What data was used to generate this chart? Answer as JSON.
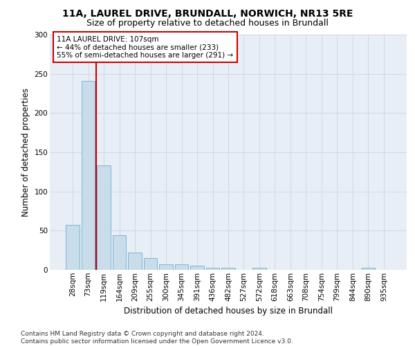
{
  "title_line1": "11A, LAUREL DRIVE, BRUNDALL, NORWICH, NR13 5RE",
  "title_line2": "Size of property relative to detached houses in Brundall",
  "xlabel": "Distribution of detached houses by size in Brundall",
  "ylabel": "Number of detached properties",
  "categories": [
    "28sqm",
    "73sqm",
    "119sqm",
    "164sqm",
    "209sqm",
    "255sqm",
    "300sqm",
    "345sqm",
    "391sqm",
    "436sqm",
    "482sqm",
    "527sqm",
    "572sqm",
    "618sqm",
    "663sqm",
    "708sqm",
    "754sqm",
    "799sqm",
    "844sqm",
    "890sqm",
    "935sqm"
  ],
  "values": [
    57,
    241,
    133,
    44,
    22,
    15,
    7,
    7,
    5,
    3,
    3,
    0,
    3,
    0,
    0,
    0,
    0,
    0,
    0,
    3,
    0
  ],
  "bar_color": "#c9dcea",
  "bar_edge_color": "#6aafd4",
  "highlight_line_color": "#cc0000",
  "annotation_box_color": "#ffffff",
  "annotation_box_edge_color": "#cc0000",
  "annotation_box_text": "11A LAUREL DRIVE: 107sqm\n← 44% of detached houses are smaller (233)\n55% of semi-detached houses are larger (291) →",
  "ylim": [
    0,
    300
  ],
  "yticks": [
    0,
    50,
    100,
    150,
    200,
    250,
    300
  ],
  "grid_color": "#d0d8e8",
  "background_color": "#e8eef5",
  "footnote": "Contains HM Land Registry data © Crown copyright and database right 2024.\nContains public sector information licensed under the Open Government Licence v3.0.",
  "title_fontsize": 10,
  "subtitle_fontsize": 9,
  "axis_label_fontsize": 8.5,
  "tick_fontsize": 7.5,
  "annotation_fontsize": 7.5,
  "footnote_fontsize": 6.5
}
